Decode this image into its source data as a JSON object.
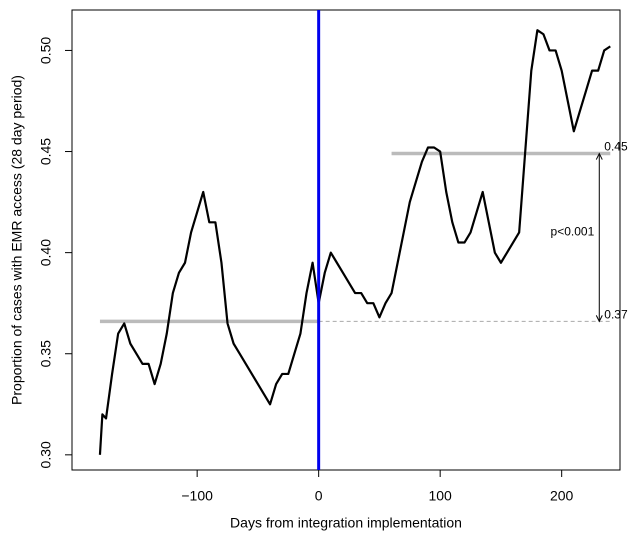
{
  "chart_data": {
    "type": "line",
    "xlabel": "Days from integration implementation",
    "ylabel": "Proportion of cases with EMR access (28 day period)",
    "x": [
      -180,
      -178,
      -175,
      -170,
      -165,
      -160,
      -155,
      -150,
      -145,
      -140,
      -135,
      -130,
      -125,
      -120,
      -115,
      -110,
      -105,
      -100,
      -95,
      -90,
      -85,
      -80,
      -75,
      -70,
      -65,
      -60,
      -55,
      -50,
      -45,
      -40,
      -35,
      -30,
      -25,
      -20,
      -15,
      -10,
      -5,
      0,
      5,
      10,
      15,
      20,
      25,
      30,
      35,
      40,
      45,
      50,
      55,
      60,
      65,
      70,
      75,
      80,
      85,
      90,
      95,
      100,
      105,
      110,
      115,
      120,
      125,
      130,
      135,
      140,
      145,
      150,
      155,
      160,
      165,
      170,
      175,
      180,
      185,
      190,
      195,
      200,
      205,
      210,
      215,
      220,
      225,
      230,
      235,
      240
    ],
    "values": [
      0.3,
      0.32,
      0.318,
      0.34,
      0.36,
      0.365,
      0.355,
      0.35,
      0.345,
      0.345,
      0.335,
      0.345,
      0.36,
      0.38,
      0.39,
      0.395,
      0.41,
      0.42,
      0.43,
      0.415,
      0.415,
      0.395,
      0.365,
      0.355,
      0.35,
      0.345,
      0.34,
      0.335,
      0.33,
      0.325,
      0.335,
      0.34,
      0.34,
      0.35,
      0.36,
      0.38,
      0.395,
      0.375,
      0.39,
      0.4,
      0.395,
      0.39,
      0.385,
      0.38,
      0.38,
      0.375,
      0.375,
      0.368,
      0.375,
      0.38,
      0.395,
      0.41,
      0.425,
      0.435,
      0.445,
      0.452,
      0.452,
      0.45,
      0.43,
      0.415,
      0.405,
      0.405,
      0.41,
      0.42,
      0.43,
      0.415,
      0.4,
      0.395,
      0.4,
      0.405,
      0.41,
      0.45,
      0.49,
      0.51,
      0.508,
      0.5,
      0.5,
      0.49,
      0.475,
      0.46,
      0.47,
      0.48,
      0.49,
      0.49,
      0.5,
      0.502
    ],
    "color": "#000000",
    "xlim": [
      -203,
      248
    ],
    "ylim": [
      0.2925,
      0.52
    ],
    "xticks": [
      {
        "value": -100,
        "label": "−100"
      },
      0,
      100,
      200
    ],
    "yticks": [
      {
        "value": 0.3,
        "label": "0.30"
      },
      0.35,
      {
        "value": 0.4,
        "label": "0.40"
      },
      0.45,
      {
        "value": 0.5,
        "label": "0.50"
      }
    ],
    "vline": {
      "x": 0,
      "color": "#0000ee"
    },
    "reference_lines": [
      {
        "value": 0.366,
        "label": "0.37",
        "xrange": [
          -180,
          0
        ],
        "color": "#bbbbbb"
      },
      {
        "value": 0.449,
        "label": "0.45",
        "xrange": [
          60,
          240
        ],
        "color": "#bbbbbb"
      }
    ],
    "annotation": "p<0.001"
  }
}
